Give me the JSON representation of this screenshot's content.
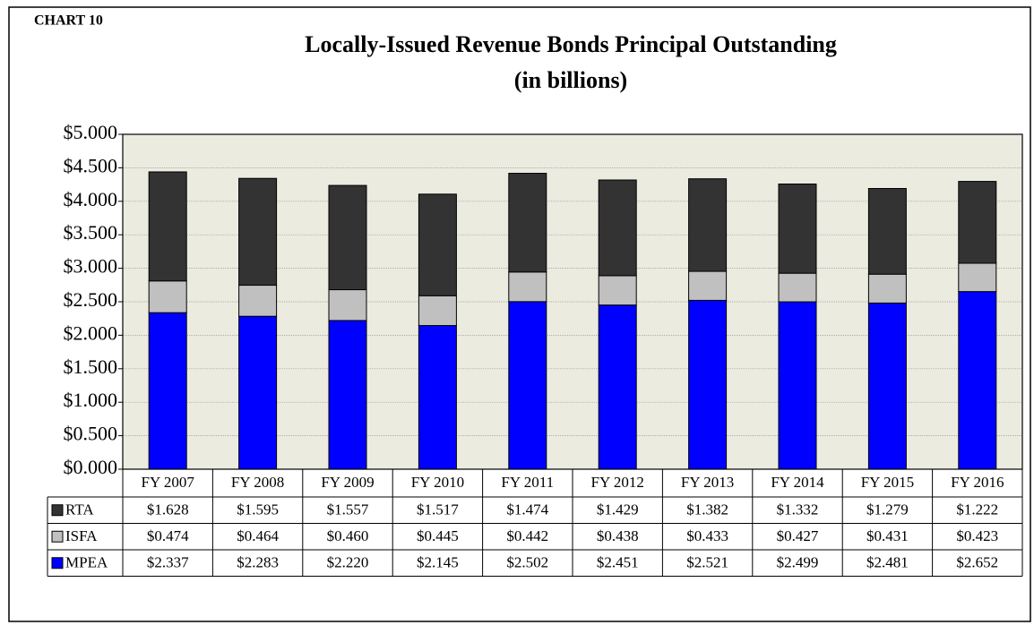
{
  "chart_data": {
    "type": "stacked_bar",
    "label": "CHART 10",
    "title": "Locally-Issued Revenue Bonds Principal Outstanding",
    "subtitle": "(in billions)",
    "categories": [
      "FY 2007",
      "FY 2008",
      "FY 2009",
      "FY 2010",
      "FY 2011",
      "FY 2012",
      "FY 2013",
      "FY 2014",
      "FY 2015",
      "FY 2016"
    ],
    "series": [
      {
        "name": "RTA",
        "color": "#333333",
        "values": [
          1.628,
          1.595,
          1.557,
          1.517,
          1.474,
          1.429,
          1.382,
          1.332,
          1.279,
          1.222
        ],
        "value_labels": [
          "$1.628",
          "$1.595",
          "$1.557",
          "$1.517",
          "$1.474",
          "$1.429",
          "$1.382",
          "$1.332",
          "$1.279",
          "$1.222"
        ]
      },
      {
        "name": "ISFA",
        "color": "#c0c0c0",
        "values": [
          0.474,
          0.464,
          0.46,
          0.445,
          0.442,
          0.438,
          0.433,
          0.427,
          0.431,
          0.423
        ],
        "value_labels": [
          "$0.474",
          "$0.464",
          "$0.460",
          "$0.445",
          "$0.442",
          "$0.438",
          "$0.433",
          "$0.427",
          "$0.431",
          "$0.423"
        ]
      },
      {
        "name": "MPEA",
        "color": "#0000ff",
        "values": [
          2.337,
          2.283,
          2.22,
          2.145,
          2.502,
          2.451,
          2.521,
          2.499,
          2.481,
          2.652
        ],
        "value_labels": [
          "$2.337",
          "$2.283",
          "$2.220",
          "$2.145",
          "$2.502",
          "$2.451",
          "$2.521",
          "$2.499",
          "$2.481",
          "$2.652"
        ]
      }
    ],
    "ylim": [
      0,
      5
    ],
    "yticks": [
      {
        "value": 0,
        "label": "$0.000"
      },
      {
        "value": 0.5,
        "label": "$0.500"
      },
      {
        "value": 1,
        "label": "$1.000"
      },
      {
        "value": 1.5,
        "label": "$1.500"
      },
      {
        "value": 2,
        "label": "$2.000"
      },
      {
        "value": 2.5,
        "label": "$2.500"
      },
      {
        "value": 3,
        "label": "$3.000"
      },
      {
        "value": 3.5,
        "label": "$3.500"
      },
      {
        "value": 4,
        "label": "$4.000"
      },
      {
        "value": 4.5,
        "label": "$4.500"
      },
      {
        "value": 5,
        "label": "$5.000"
      }
    ],
    "grid": true
  }
}
